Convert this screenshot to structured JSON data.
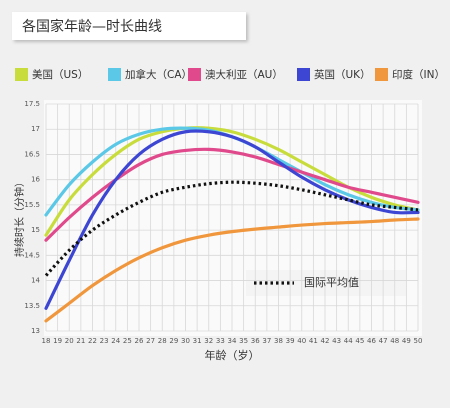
{
  "chart_data": {
    "type": "line",
    "title": "各国家年龄—时长曲线",
    "x_label": "年龄（岁）",
    "y_label": "持续时长（分钟）",
    "x": [
      18,
      20,
      22,
      24,
      26,
      28,
      30,
      32,
      34,
      36,
      38,
      40,
      42,
      44,
      46,
      48,
      50
    ],
    "xlim": [
      18,
      50
    ],
    "xticks": [
      18,
      19,
      20,
      21,
      22,
      23,
      24,
      25,
      26,
      27,
      28,
      29,
      30,
      31,
      32,
      33,
      34,
      35,
      36,
      37,
      38,
      39,
      40,
      41,
      42,
      43,
      44,
      45,
      46,
      47,
      48,
      49,
      50
    ],
    "ylim": [
      13,
      17.5
    ],
    "yticks": [
      13,
      13.5,
      14,
      14.5,
      15,
      15.5,
      16,
      16.5,
      17,
      17.5
    ],
    "grid": true,
    "series": [
      {
        "name": "美国（US）",
        "color": "#c8dc3c",
        "values": [
          14.9,
          15.6,
          16.1,
          16.5,
          16.8,
          16.95,
          17.02,
          17.02,
          16.95,
          16.8,
          16.6,
          16.35,
          16.1,
          15.85,
          15.65,
          15.5,
          15.4
        ]
      },
      {
        "name": "加拿大（CA）",
        "color": "#5ac8e6",
        "values": [
          15.3,
          15.9,
          16.35,
          16.7,
          16.9,
          17.0,
          17.02,
          16.98,
          16.85,
          16.65,
          16.4,
          16.15,
          15.9,
          15.7,
          15.55,
          15.45,
          15.4
        ]
      },
      {
        "name": "澳大利亚（AU）",
        "color": "#e04a8c",
        "values": [
          14.8,
          15.25,
          15.65,
          16.0,
          16.3,
          16.5,
          16.58,
          16.6,
          16.55,
          16.45,
          16.3,
          16.15,
          16.0,
          15.85,
          15.75,
          15.65,
          15.55
        ]
      },
      {
        "name": "英国（UK）",
        "color": "#3c46d2",
        "values": [
          13.45,
          14.4,
          15.3,
          16.0,
          16.5,
          16.8,
          16.95,
          16.95,
          16.85,
          16.65,
          16.35,
          16.05,
          15.8,
          15.6,
          15.45,
          15.35,
          15.35
        ]
      },
      {
        "name": "印度（IN）",
        "color": "#f0963c",
        "values": [
          13.2,
          13.55,
          13.9,
          14.2,
          14.45,
          14.65,
          14.8,
          14.9,
          14.97,
          15.02,
          15.06,
          15.1,
          15.13,
          15.15,
          15.17,
          15.2,
          15.22
        ]
      },
      {
        "name": "国际平均值",
        "color": "#111111",
        "dashed": true,
        "values": [
          14.1,
          14.6,
          15.0,
          15.3,
          15.55,
          15.75,
          15.85,
          15.92,
          15.95,
          15.93,
          15.88,
          15.8,
          15.7,
          15.6,
          15.5,
          15.45,
          15.4
        ]
      }
    ]
  }
}
